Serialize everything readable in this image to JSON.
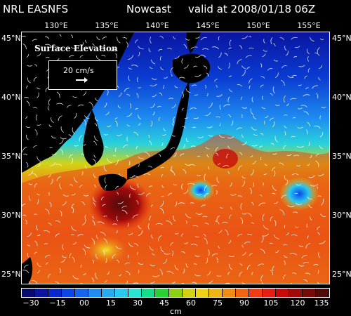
{
  "header": {
    "model": "NRL EASNFS",
    "mode": "Nowcast",
    "valid": "valid at 2008/01/18 06Z"
  },
  "axes": {
    "lon_labels": [
      "130°E",
      "135°E",
      "140°E",
      "145°E",
      "150°E",
      "155°E"
    ],
    "lat_labels": [
      "45°N",
      "40°N",
      "35°N",
      "30°N",
      "25°N"
    ]
  },
  "inset": {
    "title": "Surface Elevation",
    "reference_vector": "20 cm/s"
  },
  "colorbar": {
    "ticks": [
      "−30",
      "−15",
      "00",
      "15",
      "30",
      "45",
      "60",
      "75",
      "90",
      "105",
      "120",
      "135"
    ],
    "unit": "cm",
    "colors": [
      "#0a0a6e",
      "#0a14a0",
      "#0a28c8",
      "#0a46e6",
      "#1464f0",
      "#1e8cf0",
      "#28aaf0",
      "#28c8f0",
      "#28e6d2",
      "#14e08c",
      "#28d232",
      "#8cd214",
      "#d2d214",
      "#f0d214",
      "#f0b414",
      "#f08c14",
      "#f06414",
      "#f03c14",
      "#e61e14",
      "#c80a0a",
      "#a00a0a",
      "#780a0a",
      "#500a0a"
    ]
  },
  "map": {
    "land_color": "#000000",
    "lon_range": [
      127,
      158
    ],
    "lat_range": [
      24,
      45
    ]
  }
}
